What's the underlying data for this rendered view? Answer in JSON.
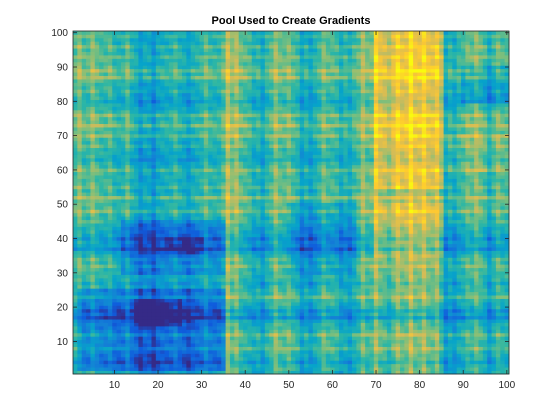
{
  "chart_data": {
    "type": "heatmap",
    "title": "Pool Used to Create Gradients",
    "xlabel": "",
    "ylabel": "",
    "xlim": [
      0.5,
      100.5
    ],
    "ylim": [
      0.5,
      100.5
    ],
    "xticks": [
      10,
      20,
      30,
      40,
      50,
      60,
      70,
      80,
      90,
      100
    ],
    "yticks": [
      10,
      20,
      30,
      40,
      50,
      60,
      70,
      80,
      90,
      100
    ],
    "grid_size": [
      100,
      100
    ],
    "colormap": "parula",
    "colormap_stops": [
      "#352a87",
      "#0f5cdd",
      "#1481d6",
      "#06a4ca",
      "#2eb7a4",
      "#87bf77",
      "#d1bb59",
      "#fec832",
      "#f9fb0e"
    ],
    "value_range": [
      0,
      1
    ],
    "column_profile": [
      [
        0,
        0.48
      ],
      [
        3,
        0.45
      ],
      [
        6,
        0.5
      ],
      [
        10,
        0.35
      ],
      [
        14,
        0.3
      ],
      [
        18,
        0.25
      ],
      [
        22,
        0.3
      ],
      [
        26,
        0.28
      ],
      [
        30,
        0.35
      ],
      [
        34,
        0.38
      ],
      [
        36,
        0.6
      ],
      [
        40,
        0.52
      ],
      [
        44,
        0.4
      ],
      [
        48,
        0.52
      ],
      [
        52,
        0.45
      ],
      [
        56,
        0.35
      ],
      [
        60,
        0.5
      ],
      [
        64,
        0.45
      ],
      [
        68,
        0.55
      ],
      [
        72,
        0.68
      ],
      [
        76,
        0.7
      ],
      [
        80,
        0.72
      ],
      [
        84,
        0.65
      ],
      [
        86,
        0.45
      ],
      [
        90,
        0.42
      ],
      [
        94,
        0.55
      ],
      [
        97,
        0.45
      ],
      [
        100,
        0.48
      ]
    ],
    "row_profile": [
      [
        1,
        0.42
      ],
      [
        5,
        0.38
      ],
      [
        10,
        0.45
      ],
      [
        14,
        0.4
      ],
      [
        18,
        0.3
      ],
      [
        22,
        0.4
      ],
      [
        25,
        0.45
      ],
      [
        30,
        0.5
      ],
      [
        35,
        0.4
      ],
      [
        38,
        0.3
      ],
      [
        42,
        0.35
      ],
      [
        46,
        0.48
      ],
      [
        50,
        0.58
      ],
      [
        54,
        0.5
      ],
      [
        58,
        0.55
      ],
      [
        62,
        0.5
      ],
      [
        66,
        0.45
      ],
      [
        70,
        0.55
      ],
      [
        74,
        0.6
      ],
      [
        78,
        0.5
      ],
      [
        82,
        0.45
      ],
      [
        86,
        0.55
      ],
      [
        90,
        0.62
      ],
      [
        94,
        0.55
      ],
      [
        97,
        0.5
      ],
      [
        100,
        0.52
      ]
    ],
    "col_stripes": [
      [
        2,
        0.12
      ],
      [
        5,
        0.1
      ],
      [
        9,
        0.08
      ],
      [
        13,
        0.12
      ],
      [
        16,
        -0.1
      ],
      [
        19,
        -0.12
      ],
      [
        24,
        0.08
      ],
      [
        27,
        -0.08
      ],
      [
        31,
        0.1
      ],
      [
        36,
        0.15
      ],
      [
        38,
        0.12
      ],
      [
        42,
        -0.08
      ],
      [
        44,
        -0.1
      ],
      [
        47,
        0.12
      ],
      [
        50,
        0.08
      ],
      [
        53,
        -0.12
      ],
      [
        55,
        -0.1
      ],
      [
        58,
        0.1
      ],
      [
        62,
        -0.1
      ],
      [
        64,
        -0.08
      ],
      [
        67,
        0.12
      ],
      [
        70,
        0.15
      ],
      [
        73,
        -0.08
      ],
      [
        75,
        0.1
      ],
      [
        78,
        0.15
      ],
      [
        81,
        0.12
      ],
      [
        84,
        0.1
      ],
      [
        86,
        -0.12
      ],
      [
        88,
        -0.1
      ],
      [
        91,
        0.08
      ],
      [
        93,
        0.1
      ],
      [
        96,
        -0.12
      ],
      [
        98,
        0.08
      ]
    ],
    "row_stripes": [
      [
        4,
        -0.08
      ],
      [
        8,
        0.1
      ],
      [
        12,
        0.12
      ],
      [
        17,
        -0.15
      ],
      [
        19,
        -0.1
      ],
      [
        23,
        0.12
      ],
      [
        27,
        -0.06
      ],
      [
        32,
        0.1
      ],
      [
        34,
        0.08
      ],
      [
        37,
        -0.12
      ],
      [
        40,
        -0.08
      ],
      [
        45,
        0.06
      ],
      [
        48,
        0.12
      ],
      [
        52,
        0.15
      ],
      [
        55,
        0.08
      ],
      [
        60,
        0.1
      ],
      [
        63,
        -0.06
      ],
      [
        67,
        0.08
      ],
      [
        70,
        0.12
      ],
      [
        73,
        0.14
      ],
      [
        76,
        0.12
      ],
      [
        80,
        -0.06
      ],
      [
        83,
        0.06
      ],
      [
        87,
        0.14
      ],
      [
        89,
        0.12
      ],
      [
        93,
        0.08
      ],
      [
        96,
        0.1
      ],
      [
        99,
        0.06
      ]
    ],
    "regions": [
      [
        2,
        35,
        2,
        25,
        -0.2
      ],
      [
        12,
        35,
        30,
        45,
        -0.15
      ],
      [
        15,
        25,
        15,
        22,
        -0.12
      ],
      [
        22,
        30,
        36,
        40,
        -0.1
      ],
      [
        70,
        85,
        55,
        100,
        0.15
      ],
      [
        70,
        85,
        35,
        50,
        0.12
      ],
      [
        86,
        100,
        60,
        70,
        0.08
      ],
      [
        42,
        62,
        2,
        25,
        0.05
      ],
      [
        50,
        65,
        30,
        50,
        -0.1
      ],
      [
        90,
        100,
        80,
        90,
        -0.15
      ]
    ]
  }
}
